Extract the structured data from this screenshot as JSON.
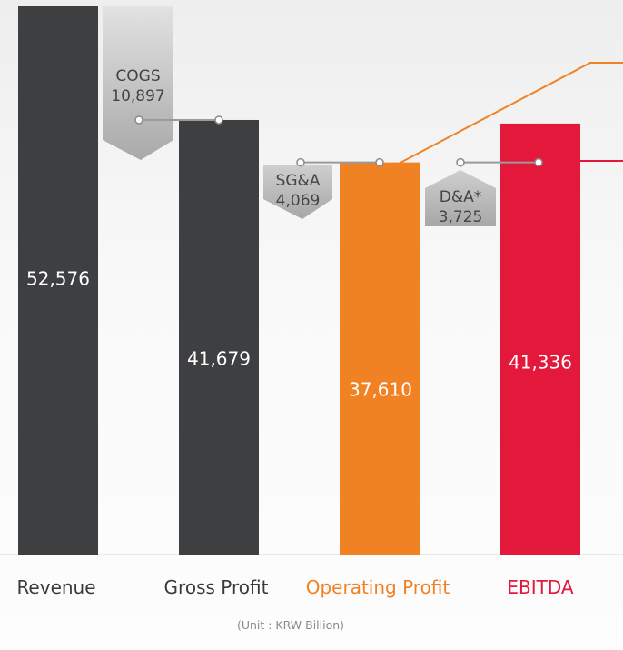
{
  "chart_data": {
    "type": "bar",
    "categories": [
      "Revenue",
      "Gross Profit",
      "Operating Profit",
      "EBITDA"
    ],
    "values": [
      52576,
      41679,
      37610,
      41336
    ],
    "value_labels": [
      "52,576",
      "41,679",
      "37,610",
      "41,336"
    ],
    "category_colors": [
      "#3e3f41",
      "#3e3f41",
      "#f08224",
      "#e3183a"
    ],
    "label_colors": [
      "#3a3a3a",
      "#3a3a3a",
      "#f08224",
      "#e3183a"
    ],
    "bridges": [
      {
        "label": "COGS",
        "value_label": "10,897",
        "value": 10897,
        "from": 0,
        "to": 1
      },
      {
        "label": "SG&A",
        "value_label": "4,069",
        "value": 4069,
        "from": 1,
        "to": 2
      },
      {
        "label": "D&A*",
        "value_label": "3,725",
        "value": 3725,
        "from": 2,
        "to": 3
      }
    ],
    "unit_note": "(Unit : KRW Billion)",
    "title": "",
    "xlabel": "",
    "ylabel": "",
    "grid": false,
    "legend": "none"
  }
}
